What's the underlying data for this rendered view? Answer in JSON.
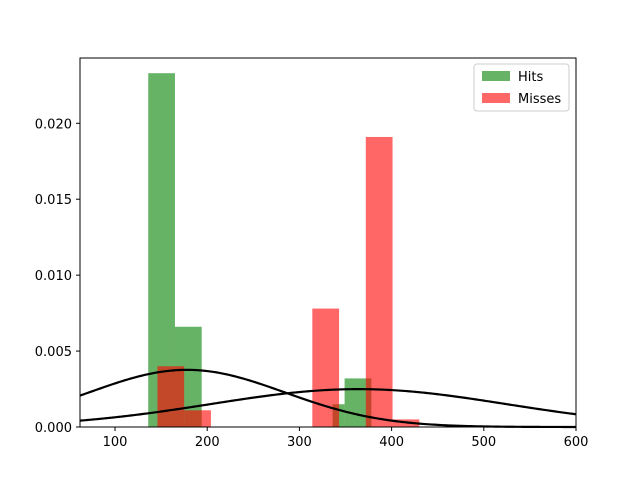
{
  "chart_data": {
    "type": "bar",
    "title": "",
    "xlabel": "",
    "ylabel": "",
    "xlim": [
      62,
      600
    ],
    "ylim": [
      0.0,
      0.0243
    ],
    "xticks": [
      100,
      200,
      300,
      400,
      500,
      600
    ],
    "xtick_labels": [
      "100",
      "200",
      "300",
      "400",
      "500",
      "600"
    ],
    "yticks": [
      0.0,
      0.005,
      0.01,
      0.015,
      0.02
    ],
    "ytick_labels": [
      "0.000",
      "0.005",
      "0.010",
      "0.015",
      "0.020"
    ],
    "grid": false,
    "legend_location": "upper right",
    "series": [
      {
        "name": "Hits",
        "kind": "histogram",
        "color": "#008000",
        "opacity": 0.6,
        "bins": [
          {
            "x0": 136,
            "x1": 165,
            "value": 0.0233
          },
          {
            "x0": 165,
            "x1": 194,
            "value": 0.0066
          },
          {
            "x0": 336,
            "x1": 349,
            "value": 0.0015
          },
          {
            "x0": 349,
            "x1": 378,
            "value": 0.0032
          }
        ]
      },
      {
        "name": "Misses",
        "kind": "histogram",
        "color": "#ff0000",
        "opacity": 0.6,
        "bins": [
          {
            "x0": 146,
            "x1": 175,
            "value": 0.004
          },
          {
            "x0": 175,
            "x1": 204,
            "value": 0.0011
          },
          {
            "x0": 314,
            "x1": 343,
            "value": 0.0078
          },
          {
            "x0": 372,
            "x1": 401,
            "value": 0.0191
          },
          {
            "x0": 401,
            "x1": 430,
            "value": 0.0005
          }
        ]
      }
    ],
    "curves": [
      {
        "kind": "normal_pdf",
        "color": "#000000",
        "mean": 178,
        "std": 106
      },
      {
        "kind": "normal_pdf",
        "color": "#000000",
        "mean": 364,
        "std": 160
      }
    ]
  }
}
